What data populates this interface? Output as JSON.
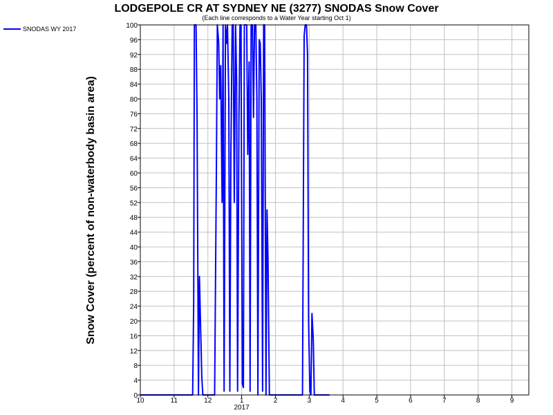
{
  "chart_data": {
    "type": "line",
    "title": "LODGEPOLE CR AT SYDNEY NE (3277) SNODAS Snow Cover",
    "subtitle": "(Each line corresponds to a Water Year starting Oct 1)",
    "ylabel": "Snow Cover (percent of non-waterbody basin area)",
    "xlabel": "",
    "ylim": [
      0,
      100
    ],
    "xlim": [
      0,
      11.5
    ],
    "x_ticks": [
      {
        "x": 0,
        "label": "10"
      },
      {
        "x": 1,
        "label": "11"
      },
      {
        "x": 2,
        "label": "12"
      },
      {
        "x": 3,
        "label": "1"
      },
      {
        "x": 4,
        "label": "2"
      },
      {
        "x": 5,
        "label": "3"
      },
      {
        "x": 6,
        "label": "4"
      },
      {
        "x": 7,
        "label": "5"
      },
      {
        "x": 8,
        "label": "6"
      },
      {
        "x": 9,
        "label": "7"
      },
      {
        "x": 10,
        "label": "8"
      },
      {
        "x": 11,
        "label": "9"
      }
    ],
    "x_year_label": {
      "x": 3,
      "label": "2017"
    },
    "y_ticks": [
      0,
      4,
      8,
      12,
      16,
      20,
      24,
      28,
      32,
      36,
      40,
      44,
      48,
      52,
      56,
      60,
      64,
      68,
      72,
      76,
      80,
      84,
      88,
      92,
      96,
      100
    ],
    "grid": true,
    "legend": "top-left",
    "series": [
      {
        "name": "SNODAS WY 2017",
        "color": "#0000ff",
        "x": [
          0,
          1.55,
          1.58,
          1.6,
          1.65,
          1.68,
          1.72,
          1.75,
          1.78,
          1.82,
          1.85,
          1.9,
          2.1,
          2.2,
          2.25,
          2.28,
          2.32,
          2.35,
          2.38,
          2.42,
          2.45,
          2.48,
          2.52,
          2.55,
          2.58,
          2.62,
          2.65,
          2.68,
          2.72,
          2.75,
          2.78,
          2.82,
          2.85,
          2.88,
          2.92,
          2.95,
          2.98,
          3.02,
          3.05,
          3.08,
          3.12,
          3.15,
          3.18,
          3.22,
          3.25,
          3.28,
          3.32,
          3.35,
          3.38,
          3.42,
          3.45,
          3.48,
          3.52,
          3.55,
          3.58,
          3.62,
          3.65,
          3.68,
          3.72,
          3.75,
          3.78,
          3.82,
          3.85,
          3.88,
          3.92,
          3.95,
          3.98,
          4.02,
          4.05,
          4.08,
          4.12,
          4.15,
          4.18,
          4.22,
          4.25,
          4.28,
          4.32,
          4.8,
          4.85,
          4.88,
          4.92,
          4.95,
          4.98,
          5.02,
          5.05,
          5.08,
          5.12,
          5.15,
          5.18,
          5.22,
          5.25,
          5.3,
          5.6
        ],
        "y": [
          0,
          0,
          25,
          100,
          100,
          75,
          0,
          32,
          20,
          5,
          0,
          0,
          0,
          0,
          60,
          100,
          95,
          80,
          89,
          52,
          100,
          1,
          100,
          95,
          100,
          80,
          1,
          65,
          100,
          100,
          52,
          100,
          85,
          1,
          75,
          100,
          100,
          3,
          2,
          100,
          100,
          100,
          65,
          90,
          1,
          100,
          100,
          75,
          100,
          100,
          80,
          0,
          96,
          95,
          80,
          1,
          100,
          100,
          0,
          50,
          37,
          0,
          0,
          0,
          0,
          0,
          0,
          0,
          0,
          0,
          0,
          0,
          0,
          0,
          0,
          0,
          0,
          0,
          97,
          100,
          100,
          92,
          20,
          1,
          0,
          22,
          15,
          0,
          0,
          0,
          0,
          0,
          0
        ]
      }
    ]
  }
}
